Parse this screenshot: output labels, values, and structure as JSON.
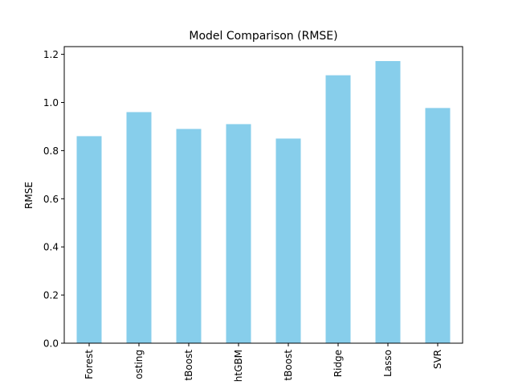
{
  "chart_data": {
    "type": "bar",
    "title": "Model Comparison (RMSE)",
    "xlabel": "",
    "ylabel": "RMSE",
    "categories": [
      "Forest",
      "osting",
      "tBoost",
      "htGBM",
      "tBoost",
      "Ridge",
      "Lasso",
      "SVR"
    ],
    "values": [
      0.86,
      0.96,
      0.89,
      0.91,
      0.85,
      1.113,
      1.172,
      0.977
    ],
    "ylim": [
      0,
      1.232
    ],
    "yticks": [
      0.0,
      0.2,
      0.4,
      0.6,
      0.8,
      1.0,
      1.2
    ],
    "ytick_labels": [
      "0.0",
      "0.2",
      "0.4",
      "0.6",
      "0.8",
      "1.0",
      "1.2"
    ],
    "grid": false,
    "legend": "none",
    "bar_color": "#87ceeb"
  }
}
